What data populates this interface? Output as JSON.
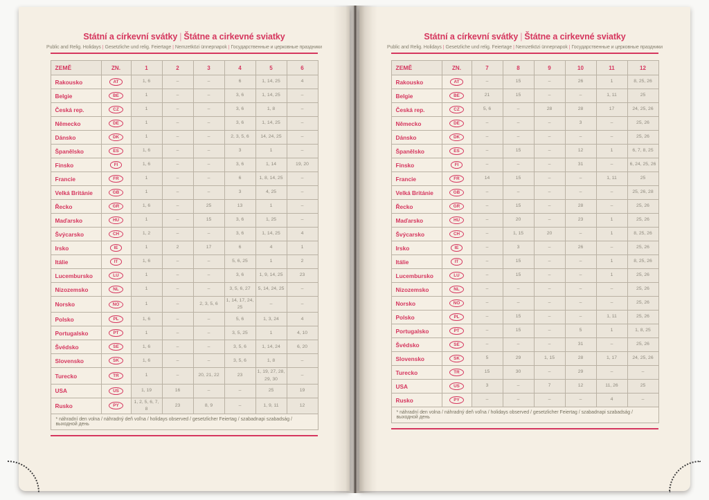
{
  "title": {
    "part1": "Státní a církevní svátky",
    "separator": "|",
    "part2": "Štátne a cirkevné sviatky"
  },
  "subtitle_parts": [
    "Public and Relig. Holidays",
    "Gesetzliche und relig. Feiertage",
    "Nemzetközi ünnepnapok",
    "Государственные и церковные праздники"
  ],
  "subtitle_separator": "|",
  "footnote": "* náhradní den volna / náhradný deň voľna / holidays observed / gesetzlicher Feiertag / szabadnapi szabadság / выходной день",
  "columns": {
    "country_label": "ZEMĚ",
    "code_label": "ZN.",
    "left_months": [
      "1",
      "2",
      "3",
      "4",
      "5",
      "6"
    ],
    "right_months": [
      "7",
      "8",
      "9",
      "10",
      "11",
      "12"
    ]
  },
  "colors": {
    "accent": "#d5365e",
    "page_background": "#f5efe4",
    "cell_shade": "#ebe5da",
    "value_text": "#8e897d"
  },
  "rows": [
    {
      "country": "Rakousko",
      "code": "AT",
      "m1_6": [
        "1, 6",
        "–",
        "–",
        "6",
        "1, 14, 25",
        "4"
      ],
      "m7_12": [
        "–",
        "15",
        "–",
        "26",
        "1",
        "8, 25, 26"
      ]
    },
    {
      "country": "Belgie",
      "code": "BE",
      "m1_6": [
        "1",
        "–",
        "–",
        "3, 6",
        "1, 14, 25",
        "–"
      ],
      "m7_12": [
        "21",
        "15",
        "–",
        "–",
        "1, 11",
        "25"
      ]
    },
    {
      "country": "Česká rep.",
      "code": "CZ",
      "m1_6": [
        "1",
        "–",
        "–",
        "3, 6",
        "1, 8",
        "–"
      ],
      "m7_12": [
        "5, 6",
        "–",
        "28",
        "28",
        "17",
        "24, 25, 26"
      ]
    },
    {
      "country": "Německo",
      "code": "DE",
      "m1_6": [
        "1",
        "–",
        "–",
        "3, 6",
        "1, 14, 25",
        "–"
      ],
      "m7_12": [
        "–",
        "–",
        "–",
        "3",
        "–",
        "25, 26"
      ]
    },
    {
      "country": "Dánsko",
      "code": "DK",
      "m1_6": [
        "1",
        "–",
        "–",
        "2, 3, 5, 6",
        "14, 24, 25",
        "–"
      ],
      "m7_12": [
        "–",
        "–",
        "–",
        "–",
        "–",
        "25, 26"
      ]
    },
    {
      "country": "Španělsko",
      "code": "ES",
      "m1_6": [
        "1, 6",
        "–",
        "–",
        "3",
        "1",
        "–"
      ],
      "m7_12": [
        "–",
        "15",
        "–",
        "12",
        "1",
        "6, 7, 8, 25"
      ]
    },
    {
      "country": "Finsko",
      "code": "FI",
      "m1_6": [
        "1, 6",
        "–",
        "–",
        "3, 6",
        "1, 14",
        "19, 20"
      ],
      "m7_12": [
        "–",
        "–",
        "–",
        "31",
        "–",
        "6, 24, 25, 26"
      ]
    },
    {
      "country": "Francie",
      "code": "FR",
      "m1_6": [
        "1",
        "–",
        "–",
        "6",
        "1, 8, 14, 25",
        "–"
      ],
      "m7_12": [
        "14",
        "15",
        "–",
        "–",
        "1, 11",
        "25"
      ]
    },
    {
      "country": "Velká Británie",
      "code": "GB",
      "m1_6": [
        "1",
        "–",
        "–",
        "3",
        "4, 25",
        "–"
      ],
      "m7_12": [
        "–",
        "–",
        "–",
        "–",
        "–",
        "25, 26, 28"
      ]
    },
    {
      "country": "Řecko",
      "code": "GR",
      "m1_6": [
        "1, 6",
        "–",
        "25",
        "13",
        "1",
        "–"
      ],
      "m7_12": [
        "–",
        "15",
        "–",
        "28",
        "–",
        "25, 26"
      ]
    },
    {
      "country": "Maďarsko",
      "code": "HU",
      "m1_6": [
        "1",
        "–",
        "15",
        "3, 6",
        "1, 25",
        "–"
      ],
      "m7_12": [
        "–",
        "20",
        "–",
        "23",
        "1",
        "25, 26"
      ]
    },
    {
      "country": "Švýcarsko",
      "code": "CH",
      "m1_6": [
        "1, 2",
        "–",
        "–",
        "3, 6",
        "1, 14, 25",
        "4"
      ],
      "m7_12": [
        "–",
        "1, 15",
        "20",
        "–",
        "1",
        "8, 25, 26"
      ]
    },
    {
      "country": "Irsko",
      "code": "IE",
      "m1_6": [
        "1",
        "2",
        "17",
        "6",
        "4",
        "1"
      ],
      "m7_12": [
        "–",
        "3",
        "–",
        "26",
        "–",
        "25, 26"
      ]
    },
    {
      "country": "Itálie",
      "code": "IT",
      "m1_6": [
        "1, 6",
        "–",
        "–",
        "5, 6, 25",
        "1",
        "2"
      ],
      "m7_12": [
        "–",
        "15",
        "–",
        "–",
        "1",
        "8, 25, 26"
      ]
    },
    {
      "country": "Lucembursko",
      "code": "LU",
      "m1_6": [
        "1",
        "–",
        "–",
        "3, 6",
        "1, 9, 14, 25",
        "23"
      ],
      "m7_12": [
        "–",
        "15",
        "–",
        "–",
        "1",
        "25, 26"
      ]
    },
    {
      "country": "Nizozemsko",
      "code": "NL",
      "m1_6": [
        "1",
        "–",
        "–",
        "3, 5, 6, 27",
        "5, 14, 24, 25",
        "–"
      ],
      "m7_12": [
        "–",
        "–",
        "–",
        "–",
        "–",
        "25, 26"
      ]
    },
    {
      "country": "Norsko",
      "code": "NO",
      "m1_6": [
        "1",
        "–",
        "2, 3, 5, 6",
        "1, 14, 17, 24, 25",
        "–",
        "–"
      ],
      "m7_12": [
        "–",
        "–",
        "–",
        "–",
        "–",
        "25, 26"
      ]
    },
    {
      "country": "Polsko",
      "code": "PL",
      "m1_6": [
        "1, 6",
        "–",
        "–",
        "5, 6",
        "1, 3, 24",
        "4"
      ],
      "m7_12": [
        "–",
        "15",
        "–",
        "–",
        "1, 11",
        "25, 26"
      ]
    },
    {
      "country": "Portugalsko",
      "code": "PT",
      "m1_6": [
        "1",
        "–",
        "–",
        "3, 5, 25",
        "1",
        "4, 10"
      ],
      "m7_12": [
        "–",
        "15",
        "–",
        "5",
        "1",
        "1, 8, 25"
      ]
    },
    {
      "country": "Švédsko",
      "code": "SE",
      "m1_6": [
        "1, 6",
        "–",
        "–",
        "3, 5, 6",
        "1, 14, 24",
        "6, 20"
      ],
      "m7_12": [
        "–",
        "–",
        "–",
        "31",
        "–",
        "25, 26"
      ]
    },
    {
      "country": "Slovensko",
      "code": "SK",
      "m1_6": [
        "1, 6",
        "–",
        "–",
        "3, 5, 6",
        "1, 8",
        "–"
      ],
      "m7_12": [
        "5",
        "29",
        "1, 15",
        "28",
        "1, 17",
        "24, 25, 26"
      ]
    },
    {
      "country": "Turecko",
      "code": "TR",
      "m1_6": [
        "1",
        "–",
        "20, 21, 22",
        "23",
        "1, 19, 27, 28, 29, 30",
        "–"
      ],
      "m7_12": [
        "15",
        "30",
        "–",
        "29",
        "–",
        "–"
      ]
    },
    {
      "country": "USA",
      "code": "US",
      "m1_6": [
        "1, 19",
        "16",
        "–",
        "–",
        "25",
        "19"
      ],
      "m7_12": [
        "3",
        "–",
        "7",
        "12",
        "11, 26",
        "25"
      ]
    },
    {
      "country": "Rusko",
      "code": "PY",
      "m1_6": [
        "1, 2, 5, 6, 7, 8",
        "23",
        "8, 9",
        "–",
        "1, 9, 11",
        "12"
      ],
      "m7_12": [
        "–",
        "–",
        "–",
        "–",
        "4",
        "–"
      ]
    }
  ]
}
